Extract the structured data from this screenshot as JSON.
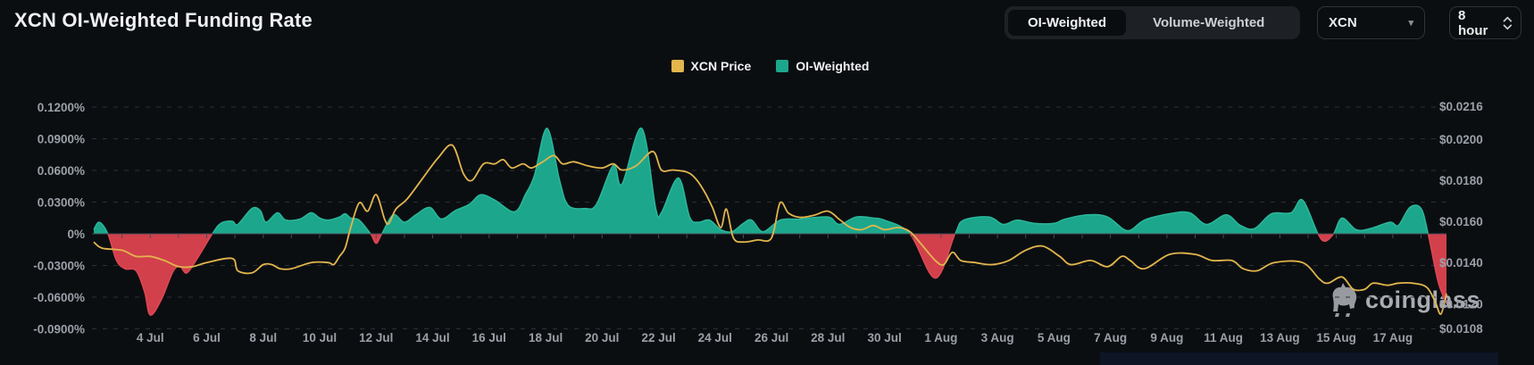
{
  "header": {
    "title": "XCN OI-Weighted Funding Rate"
  },
  "controls": {
    "weighting_toggle": {
      "options": [
        "OI-Weighted",
        "Volume-Weighted"
      ],
      "selected": "OI-Weighted"
    },
    "symbol_select": {
      "value": "XCN"
    },
    "interval_select": {
      "value": "8 hour"
    }
  },
  "legend": [
    {
      "label": "XCN Price",
      "color": "#E2B54D"
    },
    {
      "label": "OI-Weighted",
      "color": "#1CA78C"
    }
  ],
  "watermark": {
    "text": "coinglass"
  },
  "chart_data": {
    "type": "area",
    "title": "XCN OI-Weighted Funding Rate",
    "grid": "dashed-horizontal",
    "legend_position": "top-center",
    "left_axis": {
      "unit": "%",
      "ticks": [
        "0.1200%",
        "0.0900%",
        "0.0600%",
        "0.0300%",
        "0%",
        "-0.0300%",
        "-0.0600%",
        "-0.0900%"
      ],
      "values": [
        0.12,
        0.09,
        0.06,
        0.03,
        0,
        -0.03,
        -0.06,
        -0.09
      ]
    },
    "right_axis": {
      "unit": "USD",
      "ticks": [
        "$0.0216",
        "$0.0200",
        "$0.0180",
        "$0.0160",
        "$0.0140",
        "$0.0120",
        "$0.0108"
      ],
      "values": [
        0.0216,
        0.02,
        0.018,
        0.016,
        0.014,
        0.012,
        0.0108
      ]
    },
    "x_ticks": [
      {
        "label": "4 Jul",
        "day": 4
      },
      {
        "label": "6 Jul",
        "day": 6
      },
      {
        "label": "8 Jul",
        "day": 8
      },
      {
        "label": "10 Jul",
        "day": 10
      },
      {
        "label": "12 Jul",
        "day": 12
      },
      {
        "label": "14 Jul",
        "day": 14
      },
      {
        "label": "16 Jul",
        "day": 16
      },
      {
        "label": "18 Jul",
        "day": 18
      },
      {
        "label": "20 Jul",
        "day": 20
      },
      {
        "label": "22 Jul",
        "day": 22
      },
      {
        "label": "24 Jul",
        "day": 24
      },
      {
        "label": "26 Jul",
        "day": 26
      },
      {
        "label": "28 Jul",
        "day": 28
      },
      {
        "label": "30 Jul",
        "day": 30
      },
      {
        "label": "1 Aug",
        "day": 32
      },
      {
        "label": "3 Aug",
        "day": 34
      },
      {
        "label": "5 Aug",
        "day": 36
      },
      {
        "label": "7 Aug",
        "day": 38
      },
      {
        "label": "9 Aug",
        "day": 40
      },
      {
        "label": "11 Aug",
        "day": 42
      },
      {
        "label": "13 Aug",
        "day": 44
      },
      {
        "label": "15 Aug",
        "day": 46
      },
      {
        "label": "17 Aug",
        "day": 48
      }
    ],
    "x_domain": {
      "start_day": 2.0,
      "end_day": 49.9,
      "note": "day index: 2 = 2 Jul, 32 = 1 Aug, 48 = 17 Aug"
    },
    "colors": {
      "funding_positive": "#1CA78C",
      "funding_positive_edge": "#2CB89B",
      "funding_negative": "#D2404C",
      "funding_negative_edge": "#DF4953",
      "price_line": "#E2B54D",
      "grid": "#2B3036",
      "axis_line": "#464C53",
      "tick_text": "#9AA0A8"
    },
    "series": [
      {
        "name": "OI-Weighted",
        "type": "area",
        "axis": "left",
        "unit": "%",
        "points": [
          [
            2.0,
            0.004
          ],
          [
            2.2,
            0.011
          ],
          [
            2.5,
            0
          ],
          [
            2.8,
            -0.025
          ],
          [
            3.1,
            -0.033
          ],
          [
            3.5,
            -0.035
          ],
          [
            3.8,
            -0.055
          ],
          [
            4.0,
            -0.077
          ],
          [
            4.4,
            -0.062
          ],
          [
            4.8,
            -0.036
          ],
          [
            5.05,
            -0.031
          ],
          [
            5.3,
            -0.037
          ],
          [
            5.7,
            -0.022
          ],
          [
            6.2,
            0
          ],
          [
            6.5,
            0.01
          ],
          [
            6.9,
            0.012
          ],
          [
            7.1,
            0.009
          ],
          [
            7.6,
            0.024
          ],
          [
            7.9,
            0.022
          ],
          [
            8.1,
            0.011
          ],
          [
            8.5,
            0.02
          ],
          [
            8.8,
            0.013
          ],
          [
            9.3,
            0.014
          ],
          [
            9.7,
            0.02
          ],
          [
            10.0,
            0.015
          ],
          [
            10.3,
            0.013
          ],
          [
            10.7,
            0.016
          ],
          [
            10.9,
            0.019
          ],
          [
            11.1,
            0.015
          ],
          [
            11.4,
            0.013
          ],
          [
            11.8,
            0
          ],
          [
            12.0,
            -0.009
          ],
          [
            12.2,
            0
          ],
          [
            12.6,
            0.018
          ],
          [
            13.0,
            0.011
          ],
          [
            13.4,
            0.018
          ],
          [
            13.9,
            0.025
          ],
          [
            14.3,
            0.014
          ],
          [
            14.8,
            0.022
          ],
          [
            15.3,
            0.028
          ],
          [
            15.7,
            0.037
          ],
          [
            16.2,
            0.032
          ],
          [
            16.9,
            0.021
          ],
          [
            17.3,
            0.038
          ],
          [
            17.6,
            0.055
          ],
          [
            18.05,
            0.1
          ],
          [
            18.5,
            0.05
          ],
          [
            18.8,
            0.027
          ],
          [
            19.4,
            0.024
          ],
          [
            19.8,
            0.028
          ],
          [
            20.4,
            0.065
          ],
          [
            20.7,
            0.047
          ],
          [
            21.4,
            0.1
          ],
          [
            21.9,
            0.024
          ],
          [
            22.1,
            0.02
          ],
          [
            22.7,
            0.053
          ],
          [
            23.1,
            0.016
          ],
          [
            23.4,
            0.011
          ],
          [
            23.8,
            0.013
          ],
          [
            24.2,
            0.004
          ],
          [
            24.6,
            0.002
          ],
          [
            25.0,
            0.01
          ],
          [
            25.3,
            0.013
          ],
          [
            25.7,
            0.002
          ],
          [
            26.3,
            0.013
          ],
          [
            27.0,
            0.014
          ],
          [
            28.0,
            0.016
          ],
          [
            28.4,
            0.009
          ],
          [
            29.0,
            0.016
          ],
          [
            29.6,
            0.015
          ],
          [
            30.0,
            0.013
          ],
          [
            30.9,
            0
          ],
          [
            31.8,
            -0.042
          ],
          [
            32.5,
            0
          ],
          [
            32.8,
            0.013
          ],
          [
            33.7,
            0.016
          ],
          [
            34.2,
            0.009
          ],
          [
            34.7,
            0.013
          ],
          [
            35.3,
            0.01
          ],
          [
            36.0,
            0.01
          ],
          [
            36.4,
            0.014
          ],
          [
            37.2,
            0.018
          ],
          [
            37.9,
            0.016
          ],
          [
            38.6,
            0.003
          ],
          [
            39.2,
            0.013
          ],
          [
            40.1,
            0.019
          ],
          [
            40.8,
            0.02
          ],
          [
            41.4,
            0.009
          ],
          [
            42.1,
            0.018
          ],
          [
            42.6,
            0.008
          ],
          [
            43.1,
            0.005
          ],
          [
            43.7,
            0.019
          ],
          [
            44.4,
            0.02
          ],
          [
            44.8,
            0.032
          ],
          [
            45.35,
            0
          ],
          [
            45.6,
            -0.007
          ],
          [
            45.9,
            0
          ],
          [
            46.2,
            0.015
          ],
          [
            46.7,
            0.004
          ],
          [
            47.2,
            0.005
          ],
          [
            47.9,
            0.011
          ],
          [
            48.2,
            0.008
          ],
          [
            48.6,
            0.025
          ],
          [
            49.0,
            0.024
          ],
          [
            49.25,
            0
          ],
          [
            49.6,
            -0.045
          ],
          [
            49.9,
            -0.066
          ]
        ]
      },
      {
        "name": "XCN Price",
        "type": "line",
        "axis": "right",
        "unit": "USD",
        "points": [
          [
            2.0,
            0.015
          ],
          [
            2.3,
            0.0147
          ],
          [
            3.0,
            0.0146
          ],
          [
            3.5,
            0.0143
          ],
          [
            4.0,
            0.0143
          ],
          [
            4.5,
            0.0141
          ],
          [
            5.0,
            0.0138
          ],
          [
            5.5,
            0.0138
          ],
          [
            6.0,
            0.014
          ],
          [
            6.9,
            0.0142
          ],
          [
            7.1,
            0.0136
          ],
          [
            7.6,
            0.0135
          ],
          [
            8.0,
            0.0139
          ],
          [
            8.3,
            0.0139
          ],
          [
            8.6,
            0.0137
          ],
          [
            9.0,
            0.0137
          ],
          [
            9.7,
            0.014
          ],
          [
            10.3,
            0.014
          ],
          [
            10.5,
            0.0139
          ],
          [
            10.7,
            0.0143
          ],
          [
            10.9,
            0.0147
          ],
          [
            11.1,
            0.0157
          ],
          [
            11.4,
            0.0169
          ],
          [
            11.7,
            0.0165
          ],
          [
            12.0,
            0.0173
          ],
          [
            12.3,
            0.0161
          ],
          [
            12.45,
            0.0159
          ],
          [
            12.7,
            0.0166
          ],
          [
            13.1,
            0.0171
          ],
          [
            13.7,
            0.0182
          ],
          [
            14.2,
            0.0191
          ],
          [
            14.7,
            0.0197
          ],
          [
            15.1,
            0.0183
          ],
          [
            15.4,
            0.018
          ],
          [
            15.8,
            0.0188
          ],
          [
            16.2,
            0.0188
          ],
          [
            16.5,
            0.019
          ],
          [
            16.8,
            0.0186
          ],
          [
            17.2,
            0.0188
          ],
          [
            17.5,
            0.0186
          ],
          [
            17.9,
            0.0189
          ],
          [
            18.3,
            0.0192
          ],
          [
            18.6,
            0.0188
          ],
          [
            19.0,
            0.0189
          ],
          [
            19.5,
            0.0187
          ],
          [
            20.0,
            0.0186
          ],
          [
            20.4,
            0.0188
          ],
          [
            20.7,
            0.0185
          ],
          [
            21.2,
            0.0187
          ],
          [
            21.8,
            0.0194
          ],
          [
            22.1,
            0.0185
          ],
          [
            22.5,
            0.0185
          ],
          [
            23.0,
            0.0184
          ],
          [
            23.3,
            0.0181
          ],
          [
            23.6,
            0.0175
          ],
          [
            23.9,
            0.0167
          ],
          [
            24.2,
            0.0157
          ],
          [
            24.4,
            0.0166
          ],
          [
            24.65,
            0.0152
          ],
          [
            25.0,
            0.015
          ],
          [
            25.5,
            0.0151
          ],
          [
            26.0,
            0.0152
          ],
          [
            26.3,
            0.0169
          ],
          [
            26.6,
            0.0164
          ],
          [
            27.0,
            0.0162
          ],
          [
            27.5,
            0.0163
          ],
          [
            28.0,
            0.0165
          ],
          [
            28.4,
            0.0161
          ],
          [
            28.8,
            0.0157
          ],
          [
            29.2,
            0.0156
          ],
          [
            29.6,
            0.0158
          ],
          [
            30.0,
            0.0156
          ],
          [
            30.5,
            0.0157
          ],
          [
            30.9,
            0.0155
          ],
          [
            31.3,
            0.0149
          ],
          [
            31.8,
            0.0141
          ],
          [
            32.1,
            0.0139
          ],
          [
            32.4,
            0.0145
          ],
          [
            32.7,
            0.0141
          ],
          [
            33.2,
            0.014
          ],
          [
            33.8,
            0.0139
          ],
          [
            34.4,
            0.0141
          ],
          [
            35.0,
            0.0146
          ],
          [
            35.6,
            0.0148
          ],
          [
            36.2,
            0.0143
          ],
          [
            36.6,
            0.0139
          ],
          [
            37.3,
            0.0141
          ],
          [
            37.9,
            0.0138
          ],
          [
            38.4,
            0.0143
          ],
          [
            38.7,
            0.0141
          ],
          [
            39.2,
            0.0137
          ],
          [
            40.1,
            0.0144
          ],
          [
            41.0,
            0.0144
          ],
          [
            41.6,
            0.0141
          ],
          [
            42.3,
            0.0141
          ],
          [
            42.7,
            0.0137
          ],
          [
            43.2,
            0.0136
          ],
          [
            43.8,
            0.014
          ],
          [
            44.8,
            0.014
          ],
          [
            45.4,
            0.0132
          ],
          [
            45.7,
            0.013
          ],
          [
            46.2,
            0.0133
          ],
          [
            46.6,
            0.0127
          ],
          [
            47.0,
            0.0127
          ],
          [
            47.3,
            0.013
          ],
          [
            47.8,
            0.0129
          ],
          [
            48.2,
            0.013
          ],
          [
            48.7,
            0.013
          ],
          [
            49.2,
            0.0128
          ],
          [
            49.5,
            0.0121
          ],
          [
            49.7,
            0.0115
          ],
          [
            49.9,
            0.0125
          ]
        ]
      }
    ]
  }
}
